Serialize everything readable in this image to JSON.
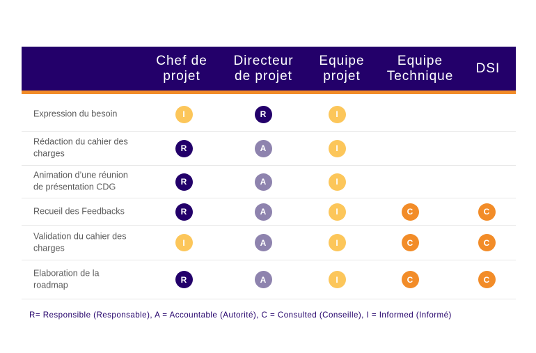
{
  "colors": {
    "header_bg": "#23006a",
    "header_accent": "#f28c28",
    "R": "#23006a",
    "A": "#8e83ae",
    "I": "#fcc65a",
    "C": "#f28c28"
  },
  "columns": [
    {
      "name": "role",
      "label": ""
    },
    {
      "name": "chef-de-projet",
      "label": "Chef de\nprojet"
    },
    {
      "name": "directeur-de-projet",
      "label": "Directeur\nde projet"
    },
    {
      "name": "equipe-projet",
      "label": "Equipe\nprojet"
    },
    {
      "name": "equipe-technique",
      "label": "Equipe\nTechnique"
    },
    {
      "name": "dsi",
      "label": "DSI"
    }
  ],
  "rows": [
    {
      "label": "Expression du besoin",
      "cells": [
        "I",
        "R",
        "I",
        "",
        ""
      ]
    },
    {
      "label": "Rédaction du cahier des\ncharges",
      "cells": [
        "R",
        "A",
        "I",
        "",
        ""
      ]
    },
    {
      "label": "Animation d’une réunion\nde présentation CDG",
      "cells": [
        "R",
        "A",
        "I",
        "",
        ""
      ]
    },
    {
      "label": "Recueil des Feedbacks",
      "cells": [
        "R",
        "A",
        "I",
        "C",
        "C"
      ]
    },
    {
      "label": "Validation du cahier des\ncharges",
      "cells": [
        "I",
        "A",
        "I",
        "C",
        "C"
      ]
    },
    {
      "label": "Elaboration de la\nroadmap",
      "cells": [
        "R",
        "A",
        "I",
        "C",
        "C"
      ]
    }
  ],
  "legend": "R= Responsible (Responsable), A = Accountable (Autorité), C = Consulted (Conseille), I = Informed (Informé)"
}
